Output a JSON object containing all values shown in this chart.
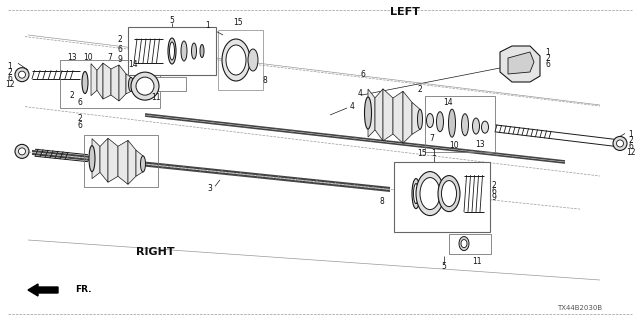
{
  "bg_color": "#ffffff",
  "left_label": "LEFT",
  "right_label": "RIGHT",
  "fr_label": "FR.",
  "part_number": "TX44B2030B",
  "fig_width": 6.4,
  "fig_height": 3.2,
  "dpi": 100,
  "lc": "#1a1a1a",
  "gray1": "#cccccc",
  "gray2": "#888888",
  "gray3": "#555555",
  "gray4": "#333333",
  "gray5": "#e8e8e8",
  "gray6": "#aaaaaa"
}
